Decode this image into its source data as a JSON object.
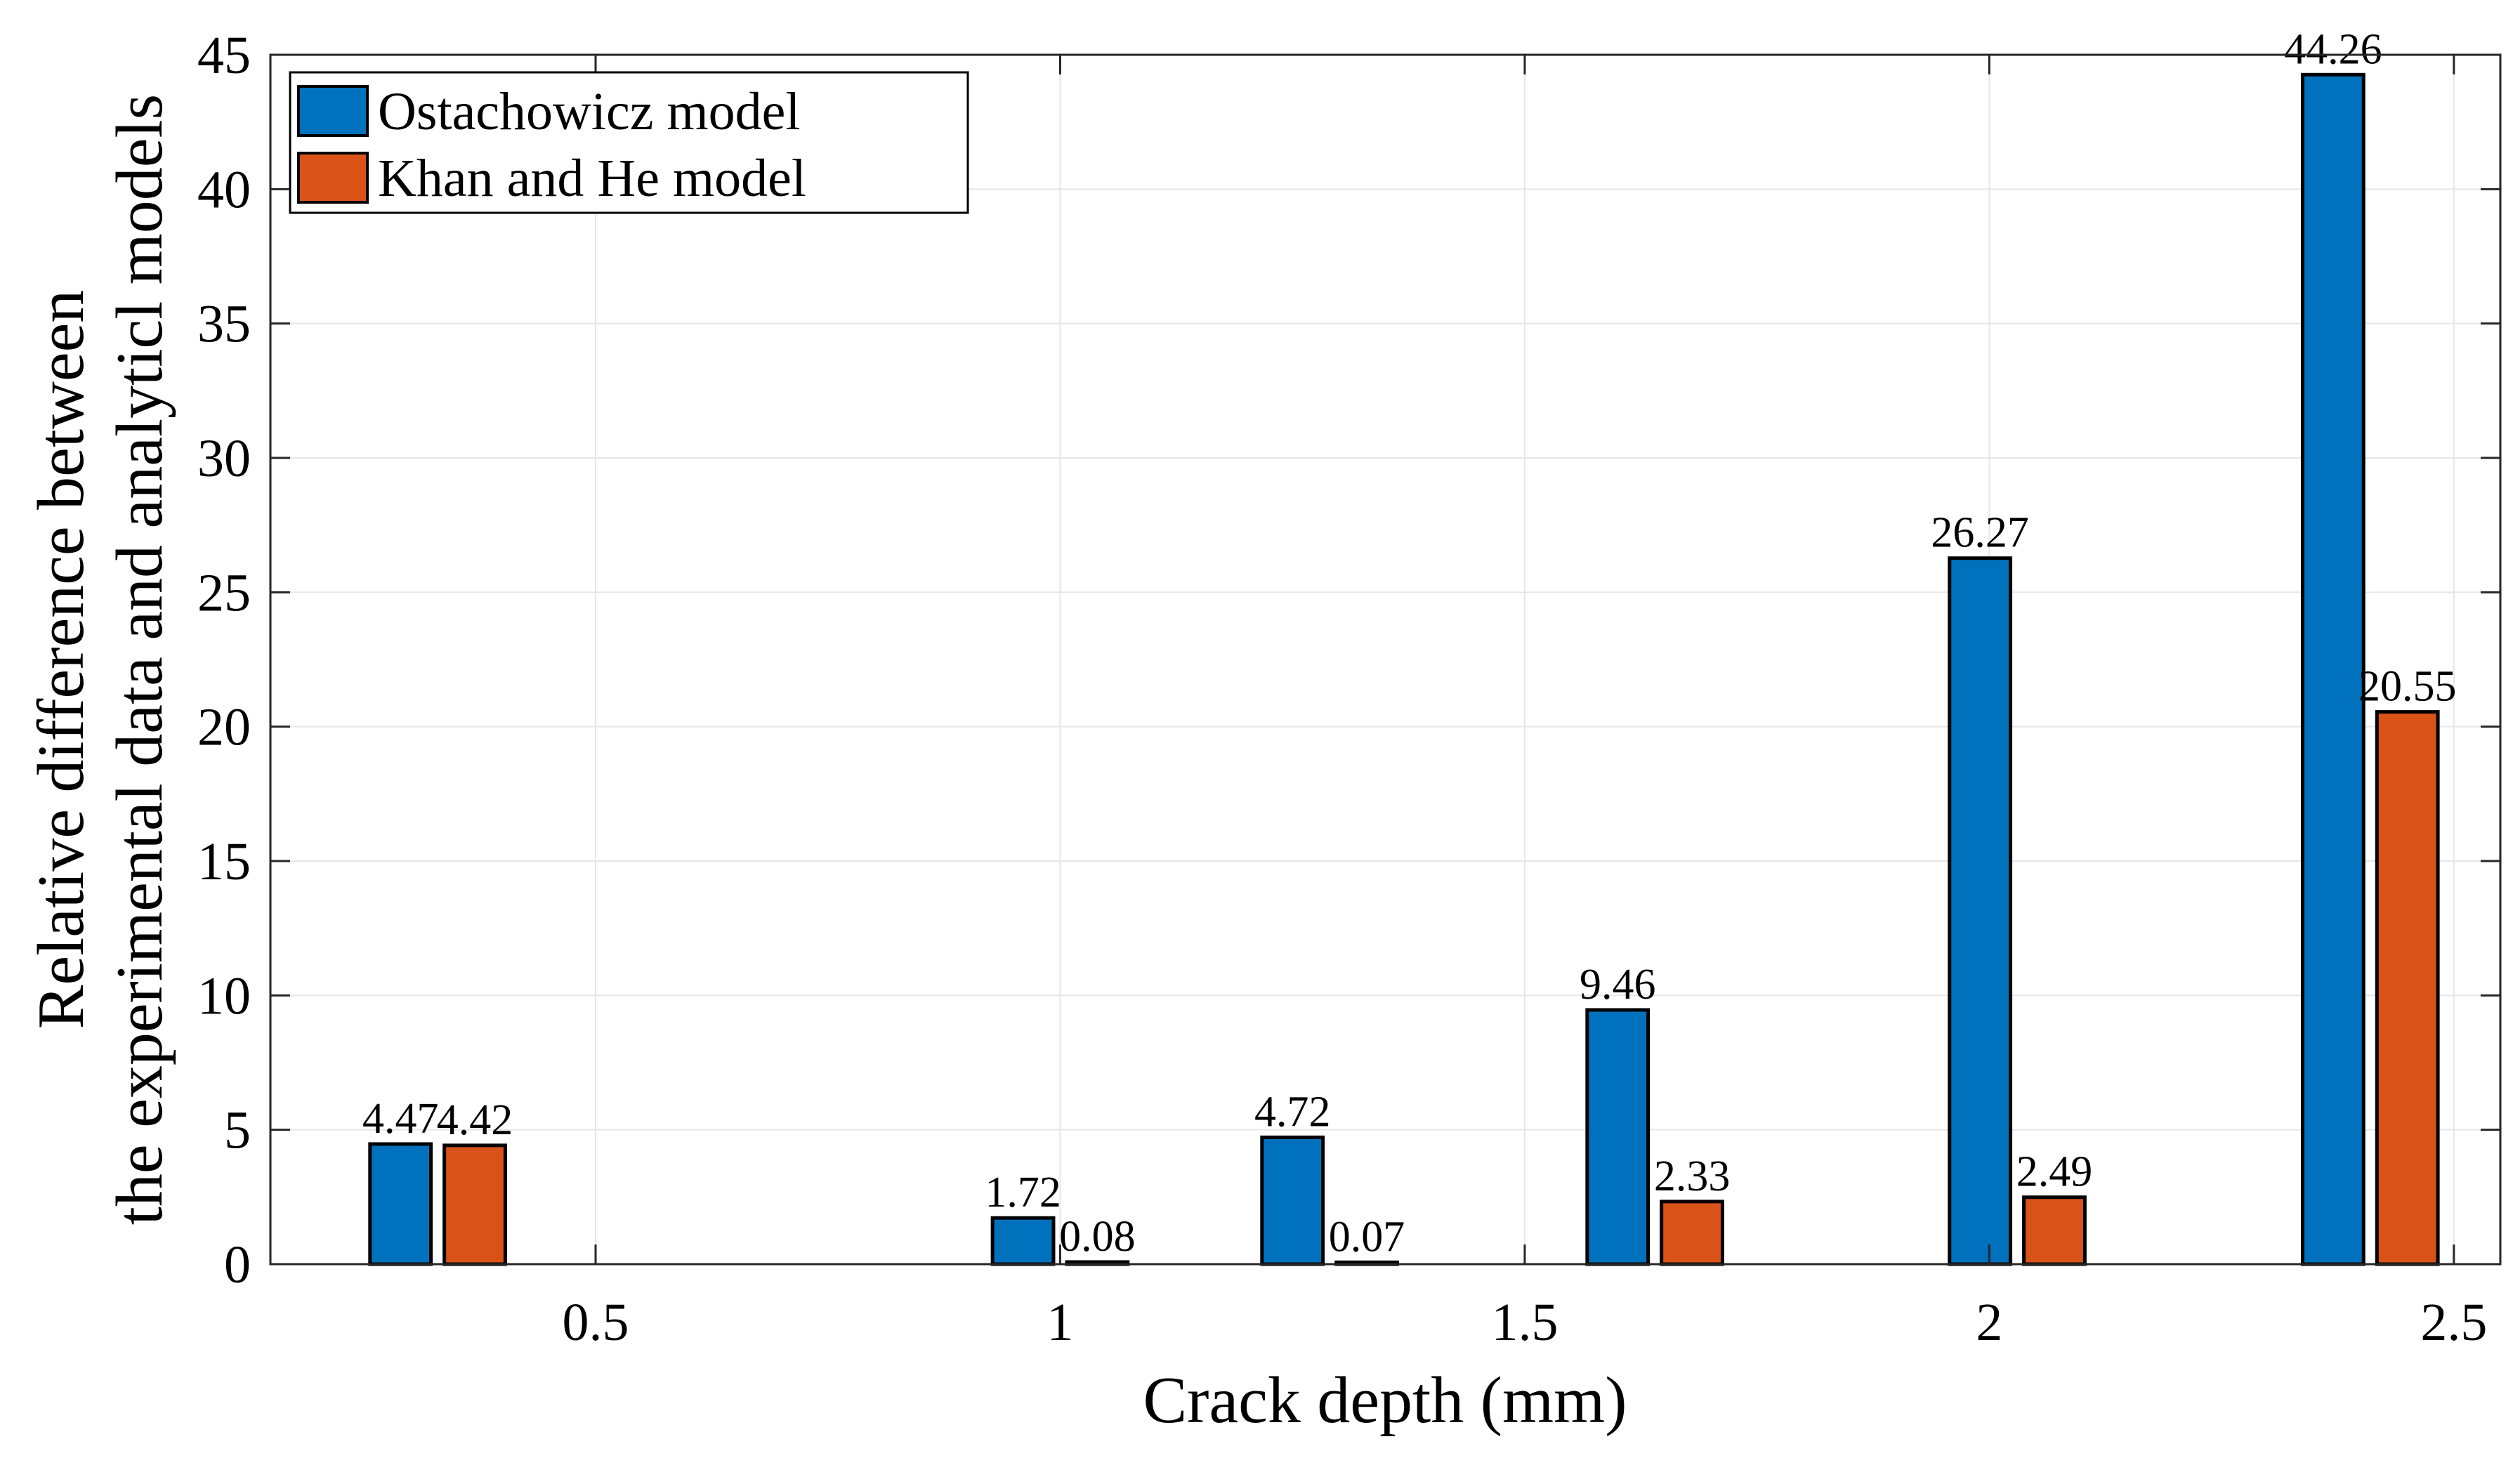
{
  "chart_data": {
    "type": "bar",
    "title": "",
    "xlabel": "Crack depth (mm)",
    "ylabel_lines": [
      "Relative difference between",
      "the experimental data and analyticl models"
    ],
    "xlim": [
      0.15,
      2.55
    ],
    "ylim": [
      0,
      45
    ],
    "xticks": [
      0.5,
      1,
      1.5,
      2,
      2.5
    ],
    "xtick_labels": [
      "0.5",
      "1",
      "1.5",
      "2",
      "2.5"
    ],
    "yticks": [
      0,
      5,
      10,
      15,
      20,
      25,
      30,
      35,
      40,
      45
    ],
    "ytick_labels": [
      "0",
      "5",
      "10",
      "15",
      "20",
      "25",
      "30",
      "35",
      "40",
      "45"
    ],
    "grid": true,
    "legend_position": "top-left",
    "bar_group_width": 0.16,
    "groups": [
      {
        "x": 0.33,
        "values": [
          4.47,
          4.42
        ],
        "labels": [
          "4.47",
          "4.42"
        ]
      },
      {
        "x": 1.0,
        "values": [
          1.72,
          0.08
        ],
        "labels": [
          "1.72",
          "0.08"
        ]
      },
      {
        "x": 1.29,
        "values": [
          4.72,
          0.07
        ],
        "labels": [
          "4.72",
          "0.07"
        ]
      },
      {
        "x": 1.64,
        "values": [
          9.46,
          2.33
        ],
        "labels": [
          "9.46",
          "2.33"
        ]
      },
      {
        "x": 2.03,
        "values": [
          26.27,
          2.49
        ],
        "labels": [
          "26.27",
          "2.49"
        ]
      },
      {
        "x": 2.41,
        "values": [
          44.26,
          20.55
        ],
        "labels": [
          "44.26",
          "20.55"
        ]
      }
    ],
    "series": [
      {
        "name": "Ostachowicz model",
        "color": "#0072BD"
      },
      {
        "name": "Khan and He model",
        "color": "#D95319"
      }
    ]
  }
}
